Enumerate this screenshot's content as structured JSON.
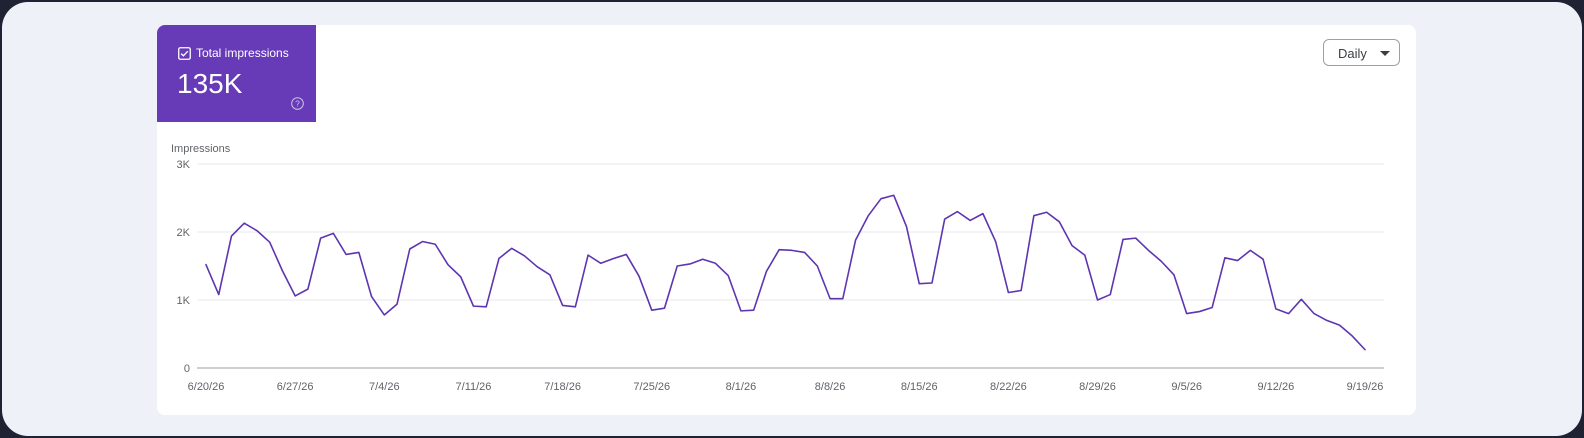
{
  "metric": {
    "label": "Total impressions",
    "value": "135K",
    "color": "#673ab7"
  },
  "controls": {
    "granularity": "Daily"
  },
  "icons": [
    "checkbox-checked-icon",
    "help-icon",
    "chevron-down-icon"
  ],
  "chart_data": {
    "type": "line",
    "title": "",
    "xlabel": "",
    "ylabel": "Impressions",
    "ylim": [
      0,
      3000
    ],
    "y_ticks": [
      {
        "value": 3000,
        "label": "3K"
      },
      {
        "value": 2000,
        "label": "2K"
      },
      {
        "value": 1000,
        "label": "1K"
      },
      {
        "value": 0,
        "label": "0"
      }
    ],
    "x_tick_labels": [
      "6/20/26",
      "6/27/26",
      "7/4/26",
      "7/11/26",
      "7/18/26",
      "7/25/26",
      "8/1/26",
      "8/8/26",
      "8/15/26",
      "8/22/26",
      "8/29/26",
      "9/5/26",
      "9/12/26",
      "9/19/26"
    ],
    "x_start": "2026-06-20",
    "grid": true,
    "line_color": "#5e35b1",
    "series": [
      {
        "name": "",
        "values": [
          1520,
          1080,
          1940,
          2130,
          2020,
          1850,
          1430,
          1060,
          1160,
          1910,
          1980,
          1670,
          1700,
          1050,
          780,
          940,
          1750,
          1860,
          1820,
          1520,
          1340,
          910,
          900,
          1610,
          1760,
          1650,
          1490,
          1370,
          920,
          900,
          1660,
          1540,
          1610,
          1670,
          1350,
          850,
          880,
          1500,
          1530,
          1600,
          1540,
          1360,
          840,
          850,
          1420,
          1740,
          1730,
          1700,
          1500,
          1020,
          1020,
          1880,
          2240,
          2490,
          2540,
          2080,
          1240,
          1250,
          2190,
          2300,
          2170,
          2270,
          1860,
          1110,
          1140,
          2240,
          2290,
          2150,
          1800,
          1660,
          1000,
          1080,
          1890,
          1910,
          1730,
          1570,
          1370,
          800,
          830,
          890,
          1620,
          1580,
          1730,
          1600,
          870,
          800,
          1010,
          800,
          700,
          630,
          470,
          270
        ]
      }
    ]
  }
}
